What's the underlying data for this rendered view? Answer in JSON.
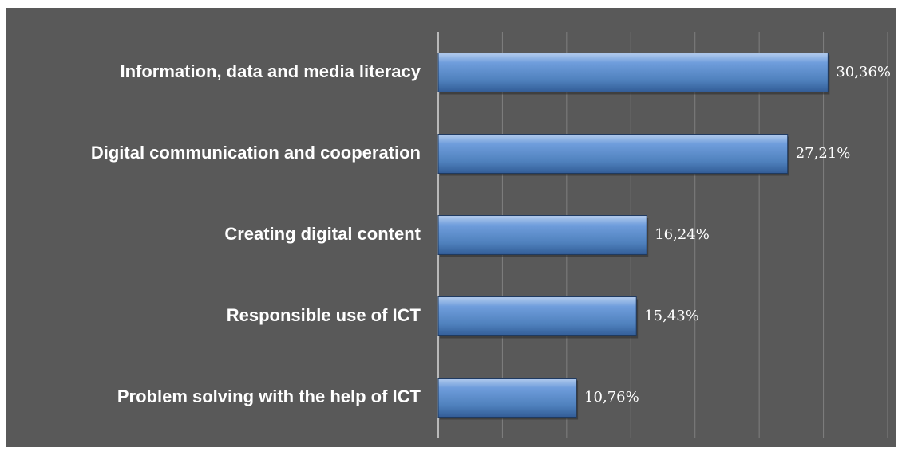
{
  "chart_data": {
    "type": "barh",
    "categories": [
      "Information, data and media literacy",
      "Digital communication and cooperation",
      "Creating digital content",
      "Responsible use of ICT",
      "Problem solving with the help of ICT"
    ],
    "values": [
      30.36,
      27.21,
      16.24,
      15.43,
      10.76
    ],
    "value_labels": [
      "30,36%",
      "27,21%",
      "16,24%",
      "15,43%",
      "10,76%"
    ],
    "color": "#4f81bd",
    "xlim": [
      0,
      35
    ],
    "xticks": [
      0,
      5,
      10,
      15,
      20,
      25,
      30,
      35
    ],
    "grid": true
  }
}
